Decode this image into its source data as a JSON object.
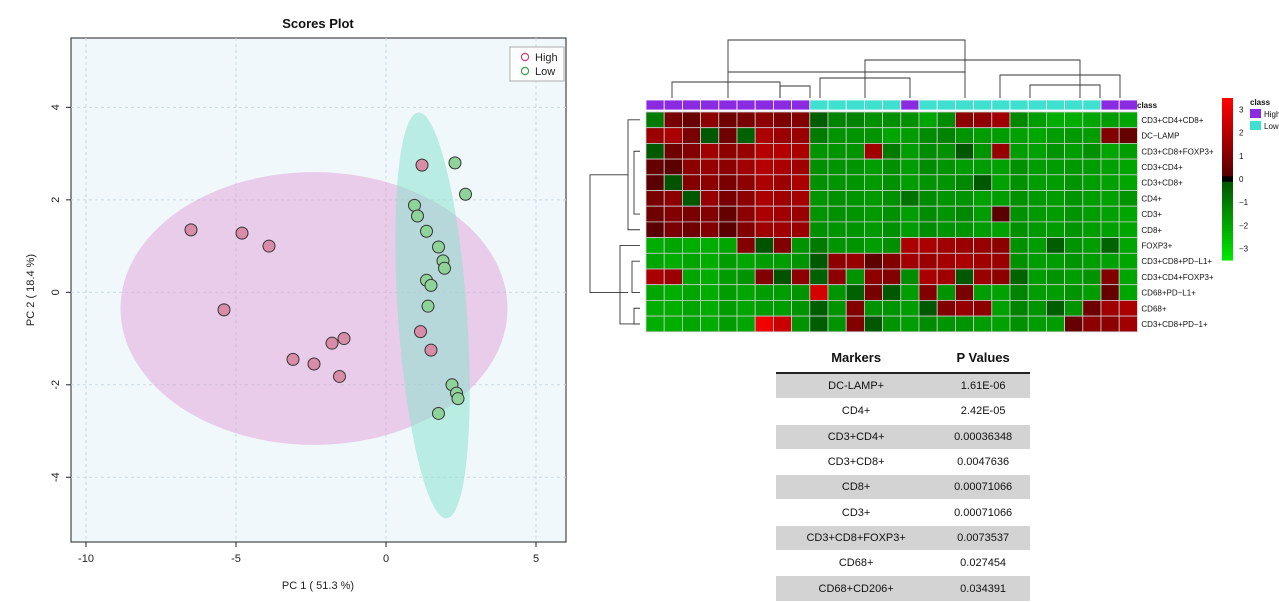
{
  "chart_data": [
    {
      "type": "scatter",
      "title": "Scores Plot",
      "xlabel": "PC 1 ( 51.3 %)",
      "ylabel": "PC 2 ( 18.4 %)",
      "xlim": [
        -10.5,
        6
      ],
      "ylim": [
        -5.4,
        5.5
      ],
      "xticks": [
        -10,
        -5,
        0,
        5
      ],
      "yticks": [
        -4,
        -2,
        0,
        2,
        4
      ],
      "grid": true,
      "legend_position": "top-right",
      "series": [
        {
          "name": "High",
          "color": "#e3a3c2",
          "points": [
            [
              -6.5,
              1.35
            ],
            [
              -4.8,
              1.28
            ],
            [
              -3.9,
              1.0
            ],
            [
              -5.4,
              -0.38
            ],
            [
              -3.1,
              -1.45
            ],
            [
              -2.4,
              -1.55
            ],
            [
              -1.8,
              -1.1
            ],
            [
              -1.4,
              -1.0
            ],
            [
              -1.55,
              -1.82
            ],
            [
              1.2,
              2.75
            ],
            [
              1.15,
              -0.85
            ],
            [
              1.5,
              -1.25
            ]
          ],
          "ellipse": {
            "center": [
              -2.4,
              -0.35
            ],
            "rx": 6.45,
            "ry": 2.95,
            "rotation": 0
          }
        },
        {
          "name": "Low",
          "color": "#9ed9a8",
          "points": [
            [
              2.3,
              2.8
            ],
            [
              2.65,
              2.12
            ],
            [
              0.95,
              1.88
            ],
            [
              1.05,
              1.65
            ],
            [
              1.35,
              1.32
            ],
            [
              1.75,
              0.98
            ],
            [
              1.9,
              0.68
            ],
            [
              1.95,
              0.52
            ],
            [
              1.35,
              0.26
            ],
            [
              1.5,
              0.15
            ],
            [
              1.4,
              -0.3
            ],
            [
              2.2,
              -2.0
            ],
            [
              2.35,
              -2.18
            ],
            [
              2.4,
              -2.3
            ],
            [
              1.75,
              -2.62
            ]
          ],
          "ellipse": {
            "center": [
              1.55,
              -0.5
            ],
            "rx": 1.15,
            "ry": 4.4,
            "rotation": 4
          }
        }
      ]
    },
    {
      "type": "heatmap",
      "rows": [
        "CD3+CD4+CD8+",
        "DC−LAMP",
        "CD3+CD8+FOXP3+",
        "CD3+CD4+",
        "CD3+CD8+",
        "CD4+",
        "CD3+",
        "CD8+",
        "FOXP3+",
        "CD3+CD8+PD−L1+",
        "CD3+CD4+FOXP3+",
        "CD68+PD−L1+",
        "CD68+",
        "CD3+CD8+PD−1+"
      ],
      "class_row_label": "class",
      "class_colors": {
        "High": "#8a2be2",
        "Low": "#40e0d0"
      },
      "classes": [
        "High",
        "High",
        "High",
        "High",
        "High",
        "High",
        "High",
        "High",
        "High",
        "Low",
        "Low",
        "Low",
        "Low",
        "Low",
        "High",
        "Low",
        "Low",
        "Low",
        "Low",
        "Low",
        "Low",
        "Low",
        "Low",
        "Low",
        "Low",
        "High",
        "High"
      ],
      "values": [
        [
          -1.0,
          0.8,
          0.5,
          1.2,
          0.6,
          0.8,
          1.2,
          0.9,
          1.0,
          -0.3,
          -1.2,
          -1.2,
          -1.5,
          -1.5,
          -1.5,
          -2.0,
          -1.4,
          1.2,
          1.3,
          1.6,
          -1.3,
          -1.8,
          -2.2,
          -2.2,
          -2.0,
          -1.8,
          -2.0
        ],
        [
          1.5,
          1.8,
          0.8,
          -0.2,
          0.6,
          -0.4,
          1.8,
          1.5,
          1.5,
          -1.0,
          -1.6,
          -1.6,
          -1.6,
          -2.0,
          -1.8,
          -1.4,
          -1.2,
          -1.6,
          -1.8,
          -1.8,
          -1.9,
          -2.0,
          -1.8,
          -1.7,
          -1.8,
          1.0,
          0.4
        ],
        [
          -0.2,
          0.6,
          1.0,
          1.6,
          1.2,
          1.4,
          2.0,
          2.0,
          1.8,
          -1.6,
          -1.6,
          -1.6,
          1.6,
          -1.0,
          -1.8,
          -1.4,
          -1.5,
          -0.2,
          -1.6,
          1.4,
          -1.8,
          -1.9,
          -1.6,
          -1.8,
          -1.5,
          -2.0,
          -1.8
        ],
        [
          0.4,
          0.2,
          1.2,
          1.4,
          1.2,
          1.6,
          2.0,
          1.8,
          1.6,
          -1.5,
          -1.6,
          -1.6,
          -1.8,
          -1.5,
          -1.8,
          -1.4,
          -1.6,
          -1.8,
          -1.8,
          -1.9,
          -1.5,
          -1.8,
          -1.8,
          -1.7,
          -1.8,
          -1.9,
          -2.0
        ],
        [
          0.2,
          -0.1,
          1.0,
          1.2,
          0.8,
          1.2,
          1.8,
          1.5,
          1.8,
          -1.5,
          -1.6,
          -1.6,
          -1.7,
          -1.5,
          -1.8,
          -1.6,
          -1.6,
          -1.3,
          -0.2,
          -1.9,
          -1.5,
          -1.8,
          -1.8,
          -1.6,
          -1.8,
          -1.9,
          -2.0
        ],
        [
          0.8,
          1.2,
          -0.2,
          1.4,
          0.8,
          1.2,
          1.8,
          1.6,
          1.7,
          -1.6,
          -1.5,
          -1.6,
          -1.7,
          -1.5,
          -0.8,
          -1.4,
          -1.6,
          -1.6,
          -1.9,
          -1.8,
          -1.5,
          -1.7,
          -1.8,
          -1.6,
          -1.8,
          -1.9,
          -1.6
        ],
        [
          0.6,
          1.0,
          0.8,
          1.0,
          0.4,
          1.2,
          1.8,
          1.6,
          1.5,
          -1.6,
          -1.5,
          -1.6,
          -1.7,
          -1.5,
          -1.8,
          -1.4,
          -1.6,
          -1.3,
          -1.8,
          0.2,
          -1.5,
          -1.7,
          -1.8,
          -1.6,
          -1.8,
          -1.9,
          -2.0
        ],
        [
          0.2,
          0.8,
          0.6,
          1.0,
          0.2,
          1.0,
          1.6,
          1.6,
          1.5,
          -1.5,
          -1.6,
          -1.6,
          -1.7,
          -1.5,
          -1.8,
          -1.4,
          -1.6,
          -1.6,
          -1.8,
          -1.9,
          -1.5,
          -1.7,
          -1.8,
          -1.6,
          -1.8,
          -1.9,
          -2.0
        ],
        [
          -2.2,
          -2.0,
          -2.2,
          -2.2,
          -2.0,
          1.0,
          -0.1,
          1.0,
          -1.6,
          -1.0,
          -1.6,
          -1.6,
          -1.8,
          -1.5,
          1.8,
          1.8,
          1.6,
          1.5,
          1.4,
          1.2,
          -1.5,
          -1.8,
          -0.3,
          -1.6,
          -1.8,
          -0.5,
          -2.0
        ],
        [
          -2.0,
          -2.2,
          -2.0,
          -2.2,
          -1.8,
          -2.0,
          -1.8,
          -1.8,
          -1.6,
          -0.2,
          1.2,
          1.4,
          0.3,
          1.0,
          1.6,
          1.5,
          1.7,
          1.8,
          1.6,
          1.5,
          -1.5,
          -1.8,
          -1.8,
          -1.6,
          -1.8,
          -1.9,
          -2.0
        ],
        [
          1.8,
          1.5,
          -2.0,
          -2.2,
          -1.8,
          -1.6,
          1.0,
          -0.1,
          1.2,
          -0.4,
          1.2,
          -1.6,
          1.2,
          1.0,
          -1.4,
          1.8,
          1.6,
          -0.2,
          1.5,
          1.2,
          -0.5,
          -1.8,
          -1.6,
          -1.8,
          -1.6,
          1.0,
          -2.0
        ],
        [
          -2.0,
          -2.2,
          -2.0,
          -2.2,
          -1.8,
          -2.0,
          -1.8,
          -1.8,
          -1.6,
          2.6,
          -1.6,
          -0.4,
          0.8,
          -0.2,
          -1.8,
          1.0,
          -1.6,
          0.8,
          -1.8,
          -1.9,
          -1.2,
          -1.8,
          -1.8,
          -1.6,
          -1.8,
          0.4,
          -2.0
        ],
        [
          -2.2,
          -2.2,
          -2.0,
          -2.2,
          -1.8,
          -2.0,
          -1.8,
          -1.8,
          -1.6,
          -0.3,
          -1.6,
          1.0,
          -1.6,
          -1.6,
          -1.8,
          -0.2,
          1.0,
          1.4,
          1.2,
          -1.9,
          -1.2,
          -1.6,
          -0.3,
          -1.6,
          0.6,
          1.6,
          1.8
        ],
        [
          -2.2,
          -2.2,
          -2.0,
          -2.2,
          -1.8,
          -2.0,
          3.2,
          2.4,
          -1.6,
          -0.3,
          -1.6,
          1.0,
          -0.2,
          -1.6,
          -1.8,
          -1.4,
          -1.6,
          -1.6,
          -1.8,
          -1.9,
          -1.5,
          -1.8,
          -1.8,
          0.4,
          1.2,
          1.2,
          1.6
        ]
      ],
      "color_scale": {
        "min": -3.5,
        "max": 3.5,
        "ticks": [
          3,
          2,
          1,
          0,
          -1,
          -2,
          -3
        ],
        "low": "#00e000",
        "mid": "#000000",
        "high": "#ff0000"
      },
      "legend_title": "class",
      "legend_entries": [
        "High",
        "Low"
      ]
    },
    {
      "type": "table",
      "columns": [
        "Markers",
        "P Values"
      ],
      "rows": [
        [
          "DC-LAMP+",
          "1.61E-06"
        ],
        [
          "CD4+",
          "2.42E-05"
        ],
        [
          "CD3+CD4+",
          "0.00036348"
        ],
        [
          "CD3+CD8+",
          "0.0047636"
        ],
        [
          "CD8+",
          "0.00071066"
        ],
        [
          "CD3+",
          "0.00071066"
        ],
        [
          "CD3+CD8+FOXP3+",
          "0.0073537"
        ],
        [
          "CD68+",
          "0.027454"
        ],
        [
          "CD68+CD206+",
          "0.034391"
        ]
      ]
    }
  ]
}
